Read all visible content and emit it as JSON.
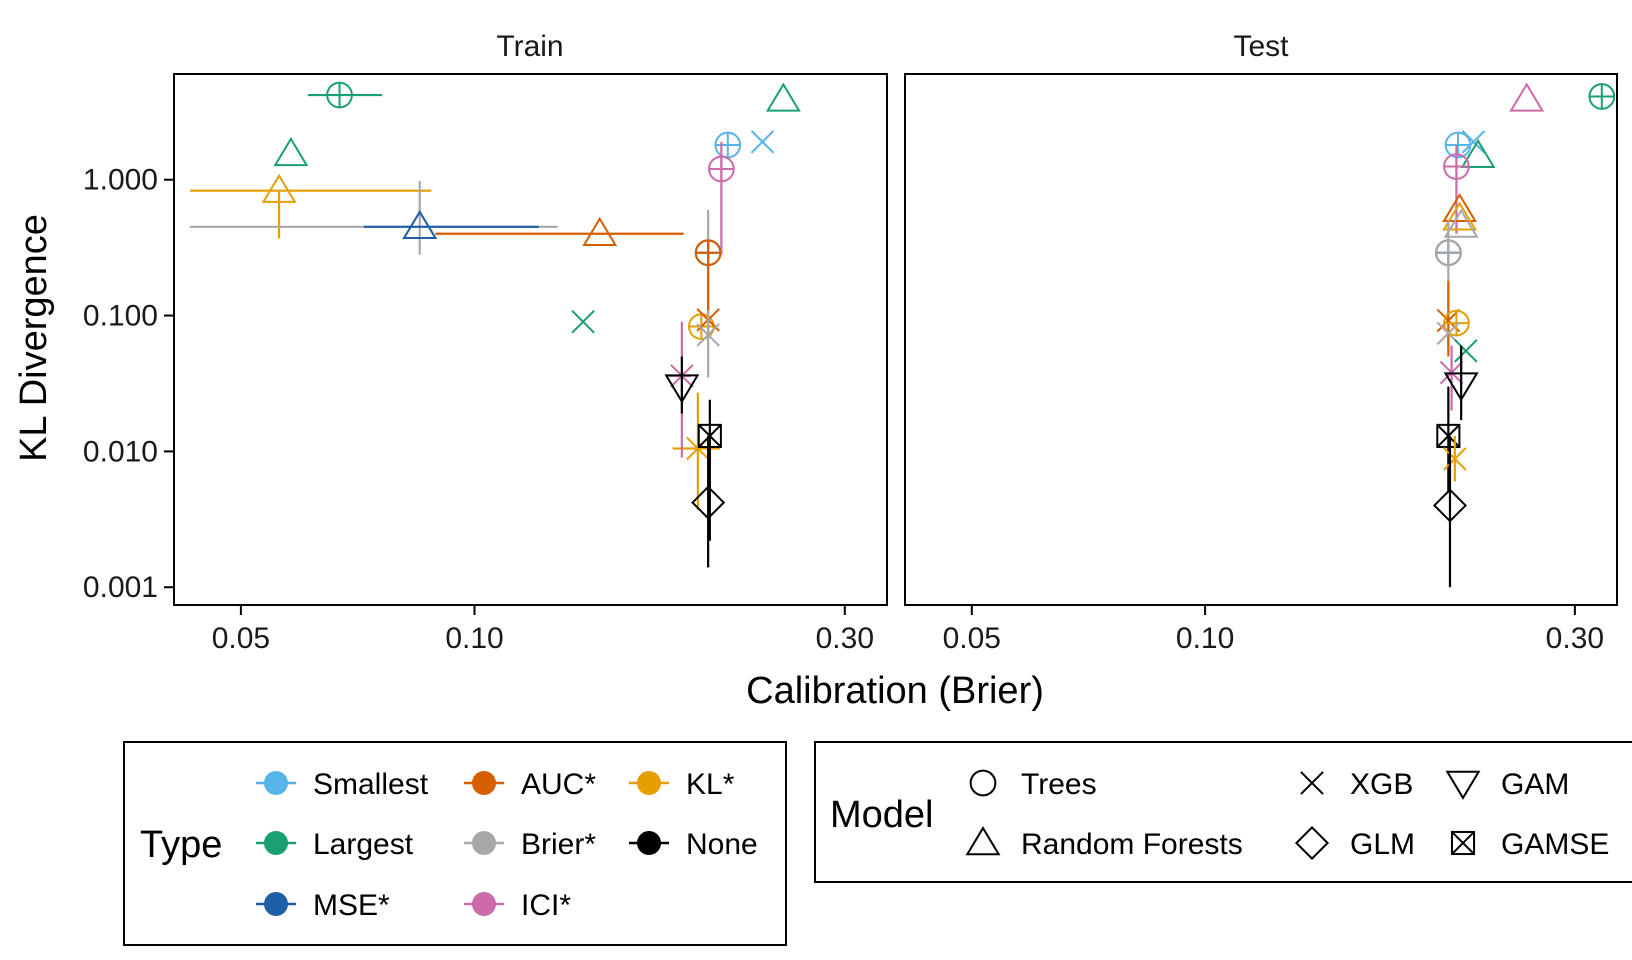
{
  "chart_data": {
    "type": "scatter",
    "xlabel": "Calibration (Brier)",
    "ylabel": "KL Divergence",
    "x_scale": "log",
    "y_scale": "log",
    "xlim": [
      0.041,
      0.34
    ],
    "ylim": [
      0.00074,
      6.0
    ],
    "x_ticks": [
      0.05,
      0.1,
      0.3
    ],
    "x_tick_labels": [
      "0.05",
      "0.10",
      "0.30"
    ],
    "y_ticks": [
      0.001,
      0.01,
      0.1,
      1.0
    ],
    "y_tick_labels": [
      "0.001",
      "0.010",
      "0.100",
      "1.000"
    ],
    "colors": {
      "Smallest": "#56B4E9",
      "Largest": "#1A9E73",
      "MSE*": "#1F5FA8",
      "AUC*": "#D55E00",
      "Brier*": "#A8A8A8",
      "None": "#000000",
      "KL*": "#E69F00",
      "ICI*": "#CC6BAA"
    },
    "shapes": {
      "Trees": "circle-plus",
      "Random Forests": "triangle",
      "XGB": "x",
      "GLM": "diamond",
      "GAM": "triangle-down",
      "GAMSE": "square-x"
    },
    "legend": {
      "type_title": "Type",
      "type_entries": [
        "Smallest",
        "AUC*",
        "KL*",
        "Largest",
        "Brier*",
        "None",
        "MSE*",
        "ICI*"
      ],
      "model_title": "Model",
      "model_entries": [
        "Trees",
        "XGB",
        "GAM",
        "Random Forests",
        "GLM",
        "GAMSE"
      ]
    },
    "panels": [
      {
        "title": "Train",
        "points": [
          {
            "type": "Largest",
            "model": "Trees",
            "x": 0.067,
            "y": 4.2,
            "xlo": 0.061,
            "xhi": 0.076
          },
          {
            "type": "Largest",
            "model": "Random Forests",
            "x": 0.058,
            "y": 1.55
          },
          {
            "type": "KL*",
            "model": "Random Forests",
            "x": 0.056,
            "y": 0.83,
            "xlo": 0.043,
            "xhi": 0.088,
            "ylo": 0.37,
            "yhi": 0.83
          },
          {
            "type": "Brier*",
            "model": "Random Forests",
            "x": 0.085,
            "y": 0.45,
            "xlo": 0.043,
            "xhi": 0.128,
            "ylo": 0.28,
            "yhi": 0.98
          },
          {
            "type": "MSE*",
            "model": "Random Forests",
            "x": 0.085,
            "y": 0.45,
            "xlo": 0.072,
            "xhi": 0.121
          },
          {
            "type": "AUC*",
            "model": "Random Forests",
            "x": 0.145,
            "y": 0.4,
            "xlo": 0.089,
            "xhi": 0.186
          },
          {
            "type": "Largest",
            "model": "XGB",
            "x": 0.138,
            "y": 0.09
          },
          {
            "type": "KL*",
            "model": "XGB",
            "x": 0.194,
            "y": 0.0105,
            "xlo": 0.18,
            "xhi": 0.207,
            "ylo": 0.0037,
            "yhi": 0.027
          },
          {
            "type": "Smallest",
            "model": "Trees",
            "x": 0.212,
            "y": 1.8
          },
          {
            "type": "Smallest",
            "model": "XGB",
            "x": 0.235,
            "y": 1.9
          },
          {
            "type": "Largest",
            "model": "Random Forests",
            "x": 0.25,
            "y": 3.9
          },
          {
            "type": "ICI*",
            "model": "Trees",
            "x": 0.208,
            "y": 1.2,
            "ylo": 0.28,
            "yhi": 1.9
          },
          {
            "type": "Smallest",
            "model": "Trees",
            "x": 0.2,
            "y": 0.29
          },
          {
            "type": "MSE*",
            "model": "Trees",
            "x": 0.2,
            "y": 0.29
          },
          {
            "type": "Brier*",
            "model": "Trees",
            "x": 0.2,
            "y": 0.29,
            "ylo": 0.07,
            "yhi": 0.6
          },
          {
            "type": "AUC*",
            "model": "Trees",
            "x": 0.2,
            "y": 0.29,
            "ylo": 0.09,
            "yhi": 0.35
          },
          {
            "type": "KL*",
            "model": "Trees",
            "x": 0.196,
            "y": 0.083
          },
          {
            "type": "AUC*",
            "model": "XGB",
            "x": 0.2,
            "y": 0.093
          },
          {
            "type": "Brier*",
            "model": "XGB",
            "x": 0.2,
            "y": 0.072,
            "ylo": 0.035,
            "yhi": 0.11
          },
          {
            "type": "ICI*",
            "model": "XGB",
            "x": 0.185,
            "y": 0.036,
            "xlo": 0.178,
            "xhi": 0.19,
            "ylo": 0.009,
            "yhi": 0.09
          },
          {
            "type": "None",
            "model": "GAM",
            "x": 0.185,
            "y": 0.03,
            "ylo": 0.019,
            "yhi": 0.05
          },
          {
            "type": "None",
            "model": "GAMSE",
            "x": 0.201,
            "y": 0.013,
            "ylo": 0.0022,
            "yhi": 0.024
          },
          {
            "type": "None",
            "model": "GLM",
            "x": 0.2,
            "y": 0.0042,
            "ylo": 0.0014,
            "yhi": 0.013
          }
        ]
      },
      {
        "title": "Test",
        "points": [
          {
            "type": "Largest",
            "model": "Trees",
            "x": 0.325,
            "y": 4.1
          },
          {
            "type": "ICI*",
            "model": "Random Forests",
            "x": 0.26,
            "y": 3.9
          },
          {
            "type": "Smallest",
            "model": "Trees",
            "x": 0.212,
            "y": 1.8
          },
          {
            "type": "Smallest",
            "model": "XGB",
            "x": 0.222,
            "y": 1.9
          },
          {
            "type": "Largest",
            "model": "Random Forests",
            "x": 0.225,
            "y": 1.5
          },
          {
            "type": "ICI*",
            "model": "Trees",
            "x": 0.211,
            "y": 1.25,
            "ylo": 0.4,
            "yhi": 1.8
          },
          {
            "type": "AUC*",
            "model": "Random Forests",
            "x": 0.213,
            "y": 0.6
          },
          {
            "type": "KL*",
            "model": "Random Forests",
            "x": 0.213,
            "y": 0.52
          },
          {
            "type": "Brier*",
            "model": "Random Forests",
            "x": 0.214,
            "y": 0.46
          },
          {
            "type": "Smallest",
            "model": "Trees",
            "x": 0.206,
            "y": 0.29
          },
          {
            "type": "MSE*",
            "model": "Trees",
            "x": 0.206,
            "y": 0.29
          },
          {
            "type": "Brier*",
            "model": "Trees",
            "x": 0.206,
            "y": 0.29,
            "ylo": 0.06,
            "yhi": 0.5
          },
          {
            "type": "AUC*",
            "model": "XGB",
            "x": 0.206,
            "y": 0.092,
            "ylo": 0.05,
            "yhi": 0.18
          },
          {
            "type": "KL*",
            "model": "Trees",
            "x": 0.211,
            "y": 0.088
          },
          {
            "type": "Brier*",
            "model": "XGB",
            "x": 0.206,
            "y": 0.074
          },
          {
            "type": "Largest",
            "model": "XGB",
            "x": 0.217,
            "y": 0.055
          },
          {
            "type": "ICI*",
            "model": "XGB",
            "x": 0.208,
            "y": 0.038,
            "ylo": 0.02,
            "yhi": 0.06
          },
          {
            "type": "None",
            "model": "GAM",
            "x": 0.214,
            "y": 0.031,
            "ylo": 0.017,
            "yhi": 0.06
          },
          {
            "type": "None",
            "model": "GAMSE",
            "x": 0.206,
            "y": 0.013,
            "ylo": 0.005,
            "yhi": 0.03
          },
          {
            "type": "KL*",
            "model": "XGB",
            "x": 0.21,
            "y": 0.0088,
            "ylo": 0.006,
            "yhi": 0.013
          },
          {
            "type": "None",
            "model": "GLM",
            "x": 0.207,
            "y": 0.004,
            "ylo": 0.001,
            "yhi": 0.013
          }
        ]
      }
    ]
  }
}
